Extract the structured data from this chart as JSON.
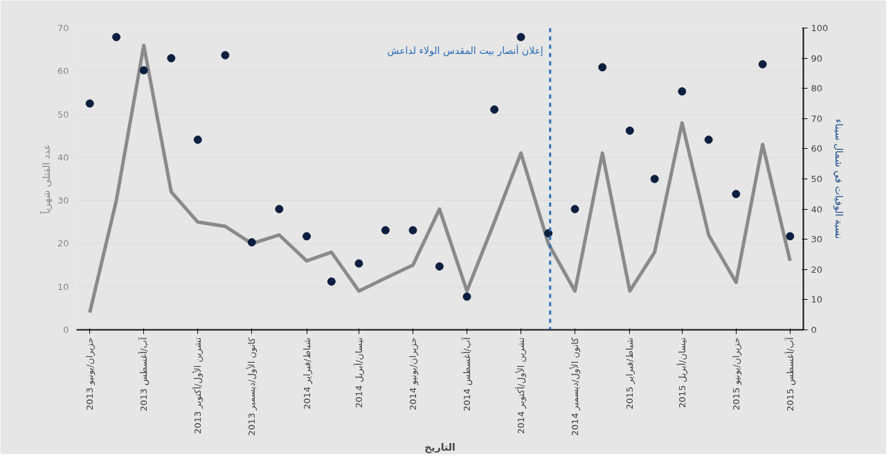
{
  "chart_data": {
    "type": "line",
    "xlabel": "التاريخ",
    "ylabel": "عدد القتلى شهرياً",
    "y2label": "نسبة الوفيات في شمال سيناء",
    "x": [
      "2013-06",
      "2013-07",
      "2013-08",
      "2013-09",
      "2013-10",
      "2013-11",
      "2013-12",
      "2014-01",
      "2014-02",
      "2014-03",
      "2014-04",
      "2014-05",
      "2014-06",
      "2014-07",
      "2014-08",
      "2014-09",
      "2014-10",
      "2014-11",
      "2014-12",
      "2015-01",
      "2015-02",
      "2015-03",
      "2015-04",
      "2015-05",
      "2015-06",
      "2015-07",
      "2015-08"
    ],
    "series": [
      {
        "color": "#8a8a8a",
        "line_style": "solid",
        "values": [
          4,
          30,
          66,
          32,
          25,
          24,
          20,
          22,
          16,
          18,
          9,
          12,
          15,
          28,
          9,
          25,
          41,
          20,
          9,
          41,
          9,
          18,
          48,
          22,
          11,
          43,
          16
        ]
      },
      {
        "type": "scatter",
        "axis": "y2",
        "color": "#0d1f40",
        "marker": "circle",
        "values": [
          75,
          97,
          86,
          90,
          63,
          91,
          29,
          40,
          31,
          16,
          22,
          33,
          33,
          21,
          11,
          73,
          97,
          32,
          40,
          87,
          66,
          50,
          79,
          63,
          45,
          88,
          31
        ]
      }
    ],
    "xlim": [
      "2013-05-17",
      "2015-08-16"
    ],
    "xticks": [
      {
        "value": "2013-06",
        "label": "حزيران/يونيو 2013"
      },
      {
        "value": "2013-08",
        "label": "آب/أغسطس 2013"
      },
      {
        "value": "2013-10",
        "label": "تشرين الأول/أكتوبر 2013"
      },
      {
        "value": "2013-12",
        "label": "كانون الأول/ديسمبر 2013"
      },
      {
        "value": "2014-02",
        "label": "شباط/فبراير 2014"
      },
      {
        "value": "2014-04",
        "label": "نيسان/أبريل 2014"
      },
      {
        "value": "2014-06",
        "label": "حزيران/يونيو 2014"
      },
      {
        "value": "2014-08",
        "label": "آب/أغسطس 2014"
      },
      {
        "value": "2014-10",
        "label": "تشرين الأول/أكتوبر 2014"
      },
      {
        "value": "2014-12",
        "label": "كانون الأول/ديسمبر 2014"
      },
      {
        "value": "2015-02",
        "label": "شباط/فبراير 2015"
      },
      {
        "value": "2015-04",
        "label": "نيسان/أبريل 2015"
      },
      {
        "value": "2015-06",
        "label": "حزيران/يونيو 2015"
      },
      {
        "value": "2015-08",
        "label": "آب/أغسطس 2015"
      }
    ],
    "ylim": [
      0,
      70
    ],
    "yticks": [
      0,
      10,
      20,
      30,
      40,
      50,
      60,
      70
    ],
    "y2lim": [
      0,
      100
    ],
    "y2ticks": [
      0,
      10,
      20,
      30,
      40,
      50,
      60,
      70,
      80,
      90,
      100
    ],
    "ref_lines": [
      {
        "axis": "x",
        "value": "2014-11-03",
        "label": "إعلان أنصار بيت المقدس الولاء لداعش",
        "color": "#2a6db5",
        "line_style": "dashed"
      }
    ],
    "grid": "y"
  }
}
